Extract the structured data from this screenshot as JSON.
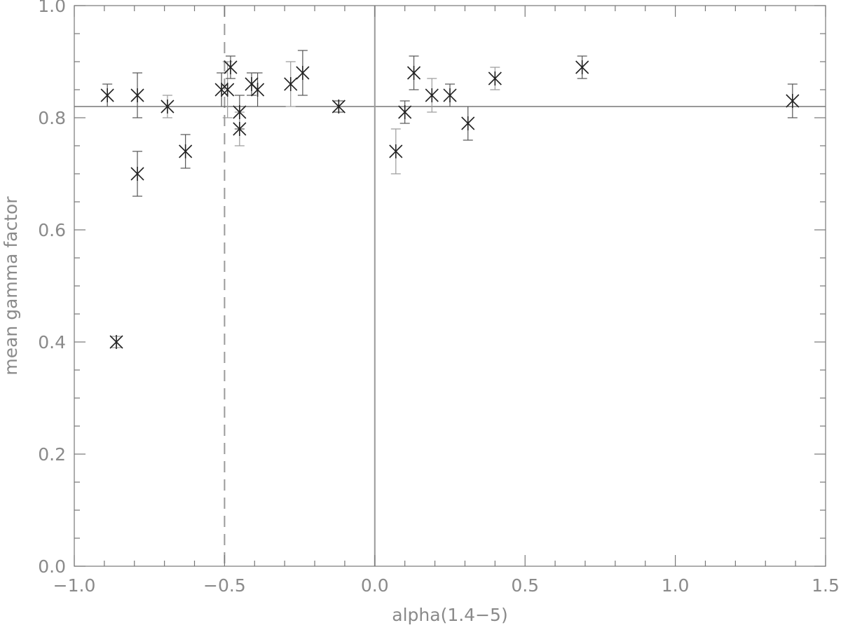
{
  "chart_data": {
    "type": "scatter",
    "title": "",
    "xlabel": "alpha(1.4−5)",
    "ylabel": "mean gamma factor",
    "xlim": [
      -1.0,
      1.5
    ],
    "ylim": [
      0.0,
      1.0
    ],
    "x_ticks": [
      -1.0,
      -0.5,
      0.0,
      0.5,
      1.0,
      1.5
    ],
    "x_tick_labels": [
      "−1.0",
      "−0.5",
      "0.0",
      "0.5",
      "1.0",
      "1.5"
    ],
    "y_ticks": [
      0.0,
      0.2,
      0.4,
      0.6,
      0.8,
      1.0
    ],
    "y_tick_labels": [
      "0.0",
      "0.2",
      "0.4",
      "0.6",
      "0.8",
      "1.0"
    ],
    "grid": false,
    "reference_lines": {
      "horizontal_y": 0.82,
      "vertical_solid_x": 0.0,
      "vertical_dashed_x": -0.5
    },
    "points": [
      {
        "x": -0.89,
        "y": 0.84,
        "err": 0.02
      },
      {
        "x": -0.86,
        "y": 0.4,
        "err": 0.01
      },
      {
        "x": -0.79,
        "y": 0.84,
        "err": 0.04
      },
      {
        "x": -0.79,
        "y": 0.7,
        "err": 0.04
      },
      {
        "x": -0.69,
        "y": 0.82,
        "err": 0.02
      },
      {
        "x": -0.63,
        "y": 0.74,
        "err": 0.03
      },
      {
        "x": -0.51,
        "y": 0.85,
        "err": 0.03
      },
      {
        "x": -0.49,
        "y": 0.85,
        "err": 0.05
      },
      {
        "x": -0.48,
        "y": 0.89,
        "err": 0.02
      },
      {
        "x": -0.45,
        "y": 0.81,
        "err": 0.03
      },
      {
        "x": -0.45,
        "y": 0.78,
        "err": 0.03
      },
      {
        "x": -0.41,
        "y": 0.86,
        "err": 0.02
      },
      {
        "x": -0.39,
        "y": 0.85,
        "err": 0.03
      },
      {
        "x": -0.28,
        "y": 0.86,
        "err": 0.04
      },
      {
        "x": -0.24,
        "y": 0.88,
        "err": 0.04
      },
      {
        "x": -0.12,
        "y": 0.82,
        "err": 0.01
      },
      {
        "x": 0.07,
        "y": 0.74,
        "err": 0.04
      },
      {
        "x": 0.1,
        "y": 0.81,
        "err": 0.02
      },
      {
        "x": 0.13,
        "y": 0.88,
        "err": 0.03
      },
      {
        "x": 0.19,
        "y": 0.84,
        "err": 0.03
      },
      {
        "x": 0.25,
        "y": 0.84,
        "err": 0.02
      },
      {
        "x": 0.31,
        "y": 0.79,
        "err": 0.03
      },
      {
        "x": 0.4,
        "y": 0.87,
        "err": 0.02
      },
      {
        "x": 0.69,
        "y": 0.89,
        "err": 0.02
      },
      {
        "x": 1.39,
        "y": 0.83,
        "err": 0.03
      }
    ]
  }
}
